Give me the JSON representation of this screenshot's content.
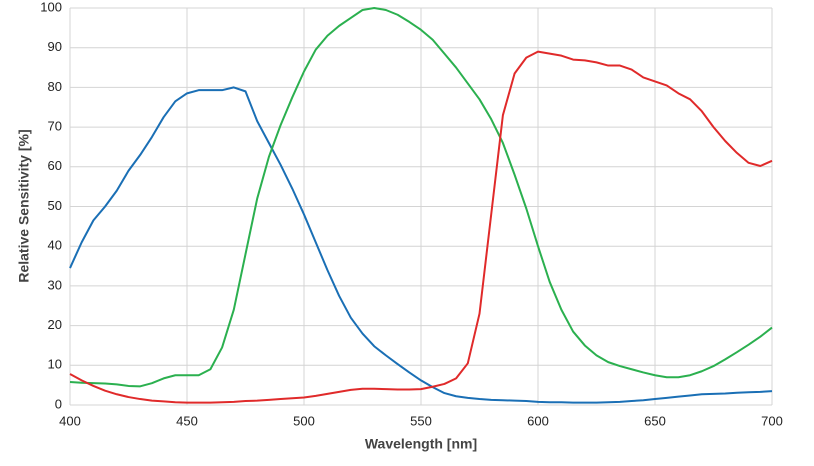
{
  "chart_data": {
    "type": "line",
    "x_label": "Wavelength [nm]",
    "y_label": "Relative Sensitivity [%]",
    "x": [
      400,
      405,
      410,
      415,
      420,
      425,
      430,
      435,
      440,
      445,
      450,
      455,
      460,
      465,
      470,
      475,
      480,
      485,
      490,
      495,
      500,
      505,
      510,
      515,
      520,
      525,
      530,
      535,
      540,
      545,
      550,
      555,
      560,
      565,
      570,
      575,
      580,
      585,
      590,
      595,
      600,
      605,
      610,
      615,
      620,
      625,
      630,
      635,
      640,
      645,
      650,
      655,
      660,
      665,
      670,
      675,
      680,
      685,
      690,
      695,
      700
    ],
    "series": [
      {
        "color": "#1a6fb5",
        "values": [
          34.5,
          41,
          46.5,
          50,
          54,
          59,
          63,
          67.5,
          72.5,
          76.5,
          78.5,
          79.3,
          79.3,
          79.3,
          80,
          79,
          71.5,
          66,
          60.5,
          54.5,
          48,
          41,
          34,
          27.5,
          22,
          18,
          14.8,
          12.5,
          10.3,
          8.2,
          6.2,
          4.5,
          3,
          2.2,
          1.8,
          1.5,
          1.3,
          1.2,
          1.1,
          1,
          0.8,
          0.7,
          0.7,
          0.6,
          0.6,
          0.6,
          0.7,
          0.8,
          1,
          1.2,
          1.5,
          1.8,
          2.1,
          2.4,
          2.7,
          2.8,
          2.9,
          3.1,
          3.2,
          3.3,
          3.5
        ]
      },
      {
        "color": "#2bb04f",
        "values": [
          5.8,
          5.6,
          5.5,
          5.4,
          5.2,
          4.8,
          4.7,
          5.5,
          6.7,
          7.5,
          7.5,
          7.5,
          9,
          14.5,
          24,
          38,
          52,
          62.5,
          70.5,
          77.5,
          84,
          89.5,
          93,
          95.5,
          97.5,
          99.5,
          100,
          99.5,
          98.3,
          96.5,
          94.5,
          92,
          88.5,
          85,
          81,
          77,
          72,
          66,
          58,
          49.5,
          40,
          31,
          24,
          18.5,
          15,
          12.5,
          10.8,
          9.8,
          9,
          8.2,
          7.5,
          7,
          7,
          7.5,
          8.5,
          9.8,
          11.5,
          13.3,
          15.2,
          17.2,
          19.5
        ]
      },
      {
        "color": "#e02a2a",
        "values": [
          7.8,
          6.2,
          4.8,
          3.6,
          2.7,
          2,
          1.5,
          1.1,
          0.9,
          0.7,
          0.6,
          0.6,
          0.6,
          0.7,
          0.8,
          1,
          1.1,
          1.3,
          1.5,
          1.7,
          1.9,
          2.3,
          2.8,
          3.3,
          3.8,
          4.1,
          4.1,
          4,
          3.9,
          3.9,
          4,
          4.6,
          5.3,
          6.7,
          10.5,
          23,
          48,
          73,
          83.5,
          87.5,
          89,
          88.5,
          88,
          87,
          86.8,
          86.3,
          85.5,
          85.5,
          84.5,
          82.5,
          81.5,
          80.5,
          78.5,
          77,
          74,
          70,
          66.5,
          63.5,
          61,
          60.2,
          61.5
        ]
      }
    ],
    "xlim": [
      400,
      700
    ],
    "xticks": [
      400,
      450,
      500,
      550,
      600,
      650,
      700
    ],
    "ylim": [
      0,
      100
    ],
    "yticks": [
      0,
      10,
      20,
      30,
      40,
      50,
      60,
      70,
      80,
      90,
      100
    ],
    "grid": true
  }
}
